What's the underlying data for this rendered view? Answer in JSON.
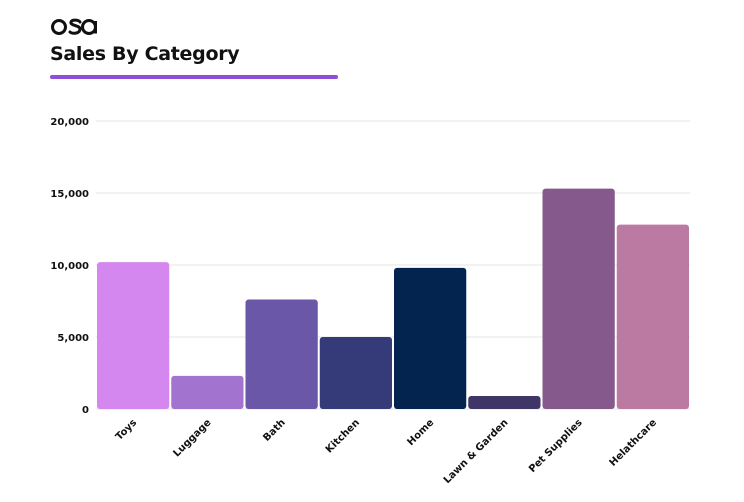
{
  "brand": {
    "logo_text": "osa"
  },
  "chart_data": {
    "type": "bar",
    "title": "Sales By Category",
    "xlabel": "",
    "ylabel": "",
    "categories": [
      "Toys",
      "Luggage",
      "Bath",
      "Kitchen",
      "Home",
      "Lawn & Garden",
      "Pet Supplies",
      "Helathcare"
    ],
    "values": [
      10200,
      2300,
      7600,
      5000,
      9800,
      900,
      15300,
      12800
    ],
    "ylim": [
      0,
      20000
    ],
    "yticks": [
      0,
      5000,
      10000,
      15000,
      20000
    ],
    "ytick_labels": [
      "0",
      "5,000",
      "10,000",
      "15,000",
      "20,000"
    ],
    "grid": true,
    "legend": "none",
    "bar_colors": [
      "#d387ef",
      "#a374cf",
      "#6a57a8",
      "#343b78",
      "#02244f",
      "#3f3567",
      "#85598c",
      "#bb7aa1"
    ]
  },
  "colors": {
    "accent": "#8e4fd6",
    "text": "#111111",
    "grid": "#e6e6e6"
  }
}
